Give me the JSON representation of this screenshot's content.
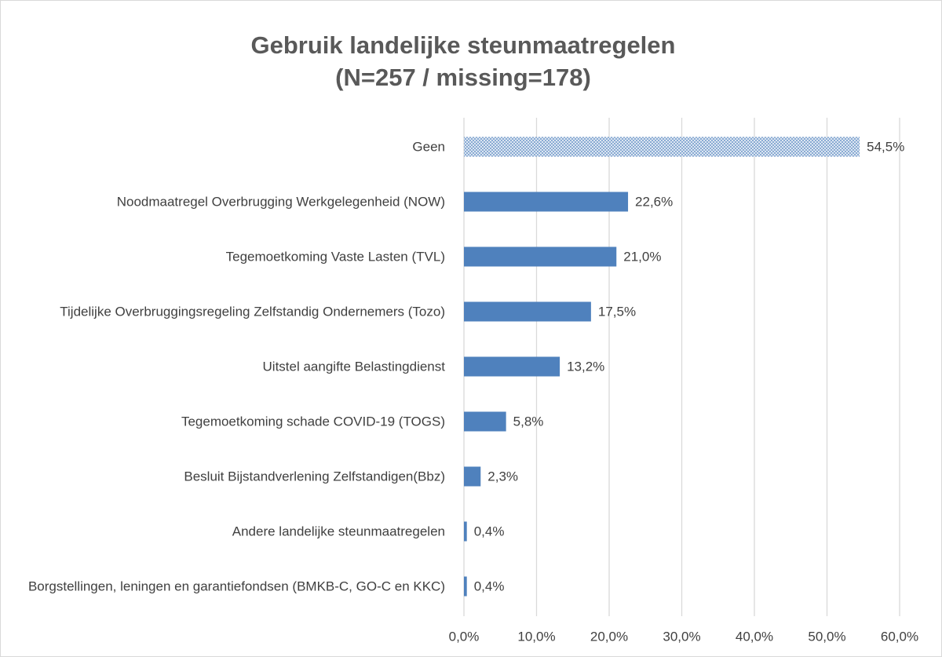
{
  "chart_data": {
    "type": "barh",
    "title": "Gebruik landelijke steunmaatregelen",
    "subtitle": "(N=257 / missing=178)",
    "categories": [
      "Geen",
      "Noodmaatregel Overbrugging Werkgelegenheid (NOW)",
      "Tegemoetkoming Vaste Lasten (TVL)",
      "Tijdelijke Overbruggingsregeling Zelfstandig Ondernemers (Tozo)",
      "Uitstel aangifte Belastingdienst",
      "Tegemoetkoming schade COVID-19 (TOGS)",
      "Besluit Bijstandverlening Zelfstandigen(Bbz)",
      "Andere landelijke steunmaatregelen",
      "Borgstellingen, leningen en garantiefondsen (BMKB-C, GO-C en KKC)"
    ],
    "values": [
      54.5,
      22.6,
      21.0,
      17.5,
      13.2,
      5.8,
      2.3,
      0.4,
      0.4
    ],
    "value_labels": [
      "54,5%",
      "22,6%",
      "21,0%",
      "17,5%",
      "13,2%",
      "5,8%",
      "2,3%",
      "0,4%",
      "0,4%"
    ],
    "bar_styles": [
      "dotted",
      "solid",
      "solid",
      "solid",
      "solid",
      "solid",
      "solid",
      "solid",
      "solid"
    ],
    "color": "#4f81bd",
    "xlim": [
      0,
      60
    ],
    "xticks": [
      {
        "value": 0,
        "label": "0,0%"
      },
      {
        "value": 10,
        "label": "10,0%"
      },
      {
        "value": 20,
        "label": "20,0%"
      },
      {
        "value": 30,
        "label": "30,0%"
      },
      {
        "value": 40,
        "label": "40,0%"
      },
      {
        "value": 50,
        "label": "50,0%"
      },
      {
        "value": 60,
        "label": "60,0%"
      }
    ],
    "grid": true
  }
}
